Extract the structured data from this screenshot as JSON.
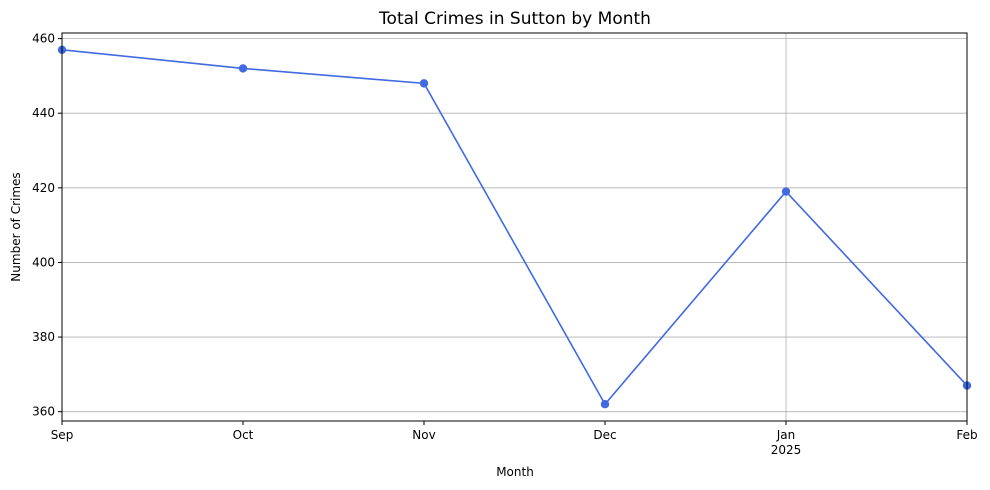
{
  "chart_data": {
    "type": "line",
    "title": "Total Crimes in Sutton by Month",
    "xlabel": "Month",
    "ylabel": "Number of Crimes",
    "categories": [
      "Sep",
      "Oct",
      "Nov",
      "Dec",
      "Jan",
      "Feb"
    ],
    "category_sublabels": [
      "",
      "",
      "",
      "",
      "2025",
      ""
    ],
    "series": [
      {
        "values": [
          457,
          452,
          448,
          362,
          419,
          367
        ]
      }
    ],
    "ylim": [
      357.5,
      461.5
    ],
    "yticks": [
      360,
      380,
      400,
      420,
      440,
      460
    ],
    "grid": true,
    "line_color": "#4169e1",
    "marker": "circle"
  }
}
